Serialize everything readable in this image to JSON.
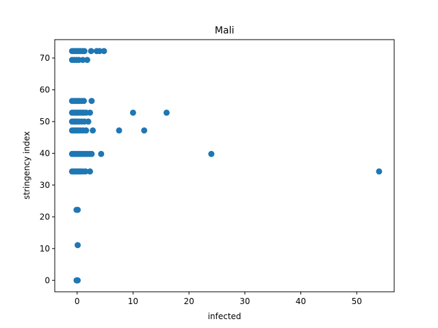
{
  "chart_data": {
    "type": "scatter",
    "title": "Mali",
    "xlabel": "infected",
    "ylabel": "stringency index",
    "xlim": [
      -4,
      56.7
    ],
    "ylim": [
      -3.6,
      75.8
    ],
    "xticks": [
      0,
      10,
      20,
      30,
      40,
      50
    ],
    "yticks": [
      0,
      10,
      20,
      30,
      40,
      50,
      60,
      70
    ],
    "grid": false,
    "marker_color": "#1f77b4",
    "series": [
      {
        "points": [
          [
            -0.9,
            72.2
          ],
          [
            -0.6,
            72.2
          ],
          [
            -0.3,
            72.2
          ],
          [
            0.0,
            72.2
          ],
          [
            0.3,
            72.2
          ],
          [
            0.6,
            72.2
          ],
          [
            1.0,
            72.2
          ],
          [
            1.3,
            72.2
          ],
          [
            2.5,
            72.2
          ],
          [
            3.5,
            72.2
          ],
          [
            4.0,
            72.2
          ],
          [
            4.8,
            72.2
          ],
          [
            -0.9,
            69.4
          ],
          [
            -0.5,
            69.4
          ],
          [
            -0.1,
            69.4
          ],
          [
            0.3,
            69.4
          ],
          [
            1.0,
            69.4
          ],
          [
            1.8,
            69.4
          ],
          [
            -0.9,
            56.5
          ],
          [
            -0.5,
            56.5
          ],
          [
            -0.2,
            56.5
          ],
          [
            0.1,
            56.5
          ],
          [
            0.4,
            56.5
          ],
          [
            0.8,
            56.5
          ],
          [
            1.2,
            56.5
          ],
          [
            2.6,
            56.5
          ],
          [
            -0.9,
            52.8
          ],
          [
            -0.6,
            52.8
          ],
          [
            -0.3,
            52.8
          ],
          [
            0.0,
            52.8
          ],
          [
            0.3,
            52.8
          ],
          [
            0.6,
            52.8
          ],
          [
            0.9,
            52.8
          ],
          [
            1.2,
            52.8
          ],
          [
            1.6,
            52.8
          ],
          [
            2.3,
            52.8
          ],
          [
            10.0,
            52.8
          ],
          [
            16.0,
            52.8
          ],
          [
            -0.9,
            50.0
          ],
          [
            -0.6,
            50.0
          ],
          [
            -0.3,
            50.0
          ],
          [
            0.0,
            50.0
          ],
          [
            0.3,
            50.0
          ],
          [
            0.8,
            50.0
          ],
          [
            1.3,
            50.0
          ],
          [
            2.0,
            50.0
          ],
          [
            -0.9,
            47.2
          ],
          [
            -0.6,
            47.2
          ],
          [
            -0.3,
            47.2
          ],
          [
            0.0,
            47.2
          ],
          [
            0.3,
            47.2
          ],
          [
            0.7,
            47.2
          ],
          [
            1.1,
            47.2
          ],
          [
            1.6,
            47.2
          ],
          [
            2.8,
            47.2
          ],
          [
            7.5,
            47.2
          ],
          [
            12.0,
            47.2
          ],
          [
            -0.9,
            39.8
          ],
          [
            -0.6,
            39.8
          ],
          [
            -0.3,
            39.8
          ],
          [
            0.0,
            39.8
          ],
          [
            0.3,
            39.8
          ],
          [
            0.6,
            39.8
          ],
          [
            1.0,
            39.8
          ],
          [
            1.4,
            39.8
          ],
          [
            1.8,
            39.8
          ],
          [
            2.2,
            39.8
          ],
          [
            2.6,
            39.8
          ],
          [
            4.3,
            39.8
          ],
          [
            24.0,
            39.8
          ],
          [
            -0.9,
            34.3
          ],
          [
            -0.6,
            34.3
          ],
          [
            -0.3,
            34.3
          ],
          [
            0.0,
            34.3
          ],
          [
            0.3,
            34.3
          ],
          [
            0.6,
            34.3
          ],
          [
            1.0,
            34.3
          ],
          [
            1.5,
            34.3
          ],
          [
            2.3,
            34.3
          ],
          [
            54.0,
            34.3
          ],
          [
            -0.1,
            22.2
          ],
          [
            0.1,
            22.2
          ],
          [
            0.1,
            11.1
          ],
          [
            -0.1,
            0.0
          ],
          [
            0.0,
            0.0
          ],
          [
            0.1,
            0.0
          ]
        ]
      }
    ]
  }
}
